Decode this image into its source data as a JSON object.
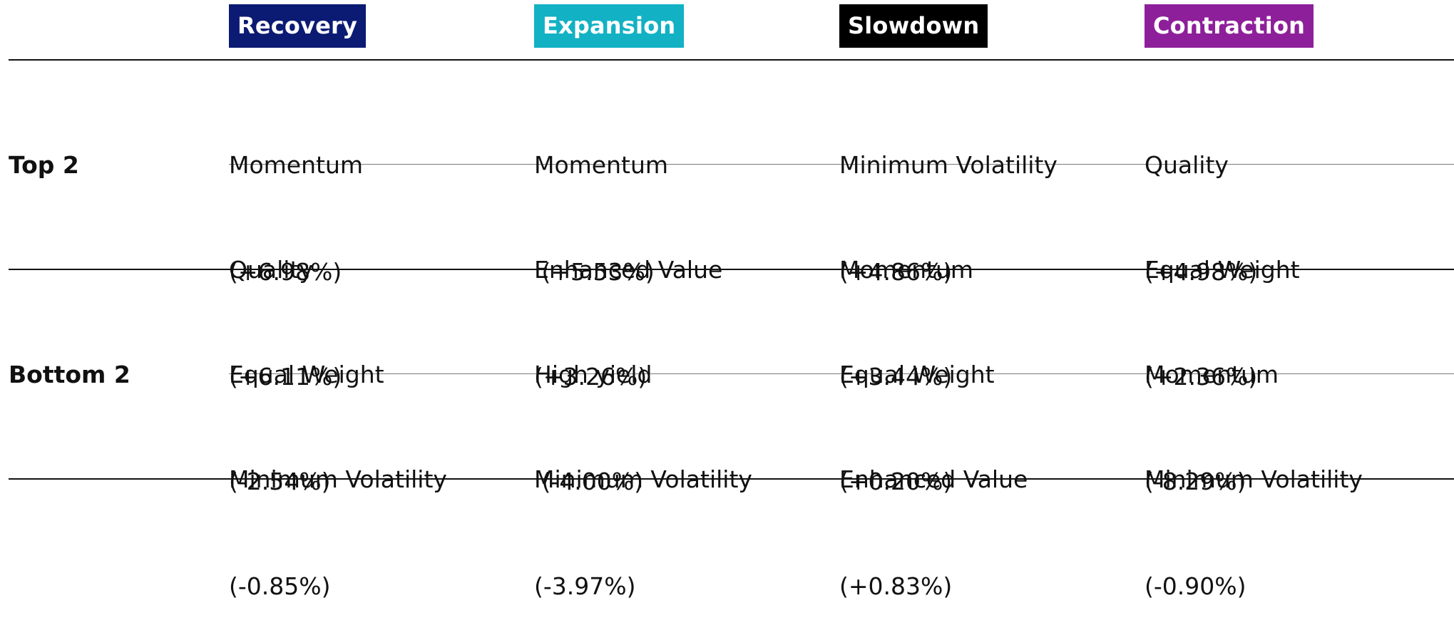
{
  "chart_data": {
    "type": "table",
    "columns": [
      {
        "label": "Recovery",
        "color": "#0b1b73"
      },
      {
        "label": "Expansion",
        "color": "#12b1c4"
      },
      {
        "label": "Slowdown",
        "color": "#000000"
      },
      {
        "label": "Contraction",
        "color": "#8e1f9a"
      }
    ],
    "groups": [
      {
        "label": "Top 2",
        "rows": [
          [
            {
              "factor": "Momentum",
              "value_text": "(+6.98%)",
              "value": 6.98
            },
            {
              "factor": "Momentum",
              "value_text": " (+5.53%)",
              "value": 5.53
            },
            {
              "factor": "Minimum Volatility",
              "value_text": "(+4.86%)",
              "value": 4.86
            },
            {
              "factor": "Quality",
              "value_text": "(+4.98%)",
              "value": 4.98
            }
          ],
          [
            {
              "factor": "Quality",
              "value_text": "(+6.11%)",
              "value": 6.11
            },
            {
              "factor": "Enhanced Value",
              "value_text": "(+3.26%)",
              "value": 3.26
            },
            {
              "factor": "Momentum",
              "value_text": "(+3.44%)",
              "value": 3.44
            },
            {
              "factor": "Equal Weight",
              "value_text": "(+2.36%)",
              "value": 2.36
            }
          ]
        ]
      },
      {
        "label": "Bottom 2",
        "rows": [
          [
            {
              "factor": "Equal Weight",
              "value_text": "(-2.54%)",
              "value": -2.54
            },
            {
              "factor": "High yield",
              "value_text": " (-4.00%)",
              "value": -4.0
            },
            {
              "factor": "Equal Weight",
              "value_text": "(+0.20%)",
              "value": 0.2
            },
            {
              "factor": "Momentum",
              "value_text": "(-8.29%)",
              "value": -8.29
            }
          ],
          [
            {
              "factor": "Minimum Volatility",
              "value_text": "(-0.85%)",
              "value": -0.85
            },
            {
              "factor": "Minimum Volatility",
              "value_text": "(-3.97%)",
              "value": -3.97
            },
            {
              "factor": "Enhanced Value",
              "value_text": "(+0.83%)",
              "value": 0.83
            },
            {
              "factor": "Minimum Volatility",
              "value_text": "(-0.90%)",
              "value": -0.9
            }
          ]
        ]
      }
    ]
  }
}
